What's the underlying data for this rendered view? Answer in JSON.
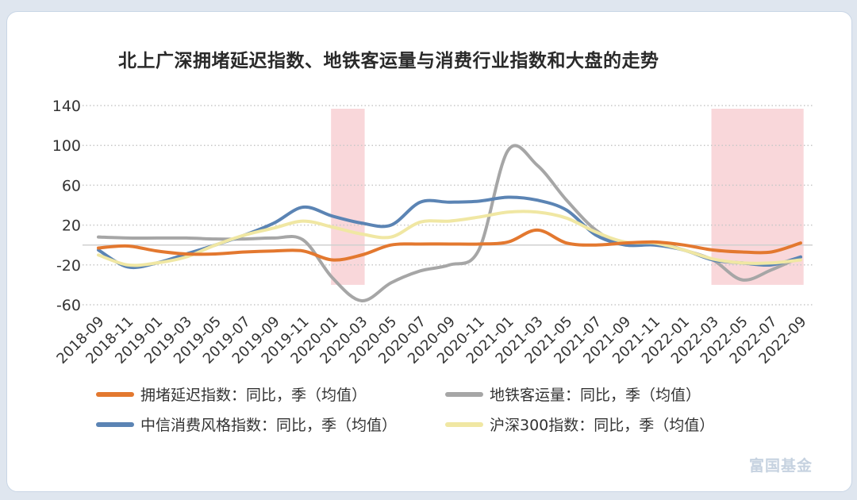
{
  "chart_data": {
    "type": "line",
    "title": "北上广深拥堵延迟指数、地铁客运量与消费行业指数和大盘的走势",
    "ylim": [
      -60,
      140
    ],
    "yticks": [
      -60,
      -20,
      20,
      60,
      100,
      140
    ],
    "categories": [
      "2018-09",
      "2018-11",
      "2019-01",
      "2019-03",
      "2019-05",
      "2019-07",
      "2019-09",
      "2019-11",
      "2020-01",
      "2020-03",
      "2020-05",
      "2020-07",
      "2020-09",
      "2020-11",
      "2021-01",
      "2021-03",
      "2021-05",
      "2021-07",
      "2021-09",
      "2021-11",
      "2022-01",
      "2022-03",
      "2022-05",
      "2022-07",
      "2022-09"
    ],
    "grid": true,
    "legend_position": "bottom",
    "shaded_ranges": [
      [
        "2020-01",
        "2020-03"
      ],
      [
        "2022-03",
        "2022-09"
      ]
    ],
    "series": [
      {
        "name": "拥堵延迟指数：同比，季（均值）",
        "color": "#e3782f",
        "values": [
          -3,
          -1,
          -6,
          -9,
          -9,
          -7,
          -6,
          -6,
          -15,
          -10,
          0,
          1,
          1,
          1,
          3,
          15,
          2,
          0,
          2,
          3,
          0,
          -5,
          -7,
          -7,
          2
        ]
      },
      {
        "name": "地铁客运量：同比，季（均值）",
        "color": "#a6a6a6",
        "values": [
          8,
          7,
          7,
          7,
          6,
          6,
          7,
          5,
          -33,
          -56,
          -38,
          -26,
          -20,
          -5,
          95,
          80,
          45,
          15,
          0,
          3,
          -5,
          -15,
          -35,
          -25,
          -12
        ]
      },
      {
        "name": "中信消费风格指数：同比，季（均值）",
        "color": "#5b84b4",
        "values": [
          -5,
          -22,
          -18,
          -9,
          0,
          10,
          22,
          38,
          29,
          22,
          20,
          43,
          43,
          44,
          48,
          45,
          35,
          10,
          0,
          0,
          -5,
          -15,
          -18,
          -20,
          -12
        ]
      },
      {
        "name": "沪深300指数：同比，季（均值）",
        "color": "#f0e7a3",
        "values": [
          -10,
          -20,
          -18,
          -12,
          0,
          10,
          17,
          24,
          18,
          11,
          8,
          23,
          24,
          28,
          33,
          33,
          27,
          13,
          3,
          2,
          -5,
          -14,
          -18,
          -18,
          -15
        ]
      }
    ]
  },
  "watermark": "富国基金"
}
